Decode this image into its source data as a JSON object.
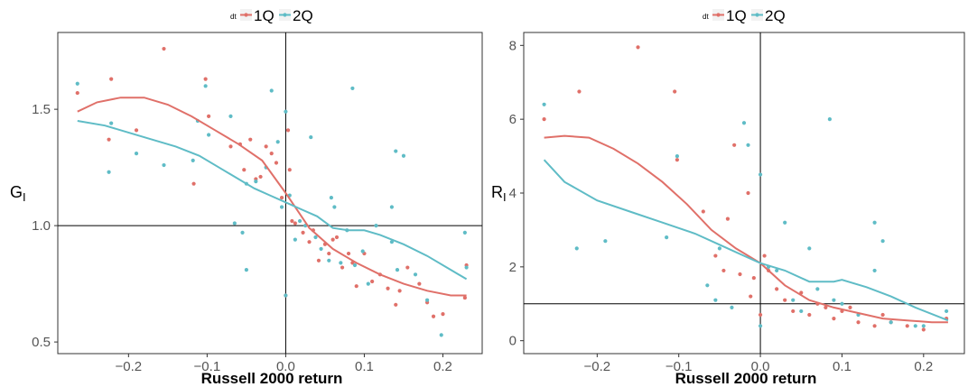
{
  "colors": {
    "series_1Q": "#E07069",
    "series_2Q": "#5FBCC6"
  },
  "chart_data": [
    {
      "type": "scatter",
      "panel": "left",
      "xlabel": "Russell 2000 return",
      "ylabel_main": "G",
      "ylabel_sub": "I",
      "legend_title": "dt",
      "legend_position": "top",
      "xlim": [
        -0.29,
        0.25
      ],
      "ylim": [
        0.45,
        1.83
      ],
      "xticks": [
        -0.2,
        -0.1,
        0.0,
        0.1,
        0.2
      ],
      "xtick_labels": [
        "−0.2",
        "−0.1",
        "0.0",
        "0.1",
        "0.2"
      ],
      "yticks": [
        0.5,
        1.0,
        1.5
      ],
      "ytick_labels": [
        "0.5",
        "1.0",
        "1.5"
      ],
      "ref_x": 0.0,
      "ref_y": 1.0,
      "grid": false,
      "series": [
        {
          "name": "1Q",
          "points": [
            [
              -0.265,
              1.57
            ],
            [
              -0.225,
              1.37
            ],
            [
              -0.222,
              1.63
            ],
            [
              -0.19,
              1.41
            ],
            [
              -0.155,
              1.76
            ],
            [
              -0.117,
              1.18
            ],
            [
              -0.102,
              1.63
            ],
            [
              -0.098,
              1.47
            ],
            [
              -0.07,
              1.34
            ],
            [
              -0.058,
              1.35
            ],
            [
              -0.053,
              1.24
            ],
            [
              -0.045,
              1.37
            ],
            [
              -0.038,
              1.2
            ],
            [
              -0.032,
              1.21
            ],
            [
              -0.025,
              1.34
            ],
            [
              -0.018,
              1.31
            ],
            [
              -0.012,
              1.27
            ],
            [
              -0.005,
              1.12
            ],
            [
              0.0,
              0.7
            ],
            [
              0.003,
              1.41
            ],
            [
              0.005,
              1.24
            ],
            [
              0.008,
              1.02
            ],
            [
              0.012,
              1.01
            ],
            [
              0.022,
              0.97
            ],
            [
              0.03,
              0.93
            ],
            [
              0.035,
              0.98
            ],
            [
              0.042,
              0.85
            ],
            [
              0.05,
              0.92
            ],
            [
              0.055,
              0.88
            ],
            [
              0.06,
              0.94
            ],
            [
              0.065,
              0.95
            ],
            [
              0.072,
              0.82
            ],
            [
              0.08,
              0.88
            ],
            [
              0.085,
              0.84
            ],
            [
              0.09,
              0.74
            ],
            [
              0.1,
              0.88
            ],
            [
              0.11,
              0.76
            ],
            [
              0.12,
              0.79
            ],
            [
              0.13,
              0.73
            ],
            [
              0.14,
              0.66
            ],
            [
              0.145,
              0.72
            ],
            [
              0.155,
              0.82
            ],
            [
              0.17,
              0.75
            ],
            [
              0.18,
              0.67
            ],
            [
              0.188,
              0.61
            ],
            [
              0.2,
              0.62
            ],
            [
              0.228,
              0.69
            ],
            [
              0.23,
              0.83
            ]
          ],
          "trend": [
            [
              -0.265,
              1.49
            ],
            [
              -0.24,
              1.53
            ],
            [
              -0.21,
              1.55
            ],
            [
              -0.18,
              1.55
            ],
            [
              -0.15,
              1.52
            ],
            [
              -0.12,
              1.47
            ],
            [
              -0.09,
              1.41
            ],
            [
              -0.06,
              1.35
            ],
            [
              -0.03,
              1.28
            ],
            [
              0.0,
              1.14
            ],
            [
              0.03,
              0.99
            ],
            [
              0.06,
              0.9
            ],
            [
              0.09,
              0.84
            ],
            [
              0.12,
              0.79
            ],
            [
              0.15,
              0.75
            ],
            [
              0.18,
              0.72
            ],
            [
              0.21,
              0.7
            ],
            [
              0.23,
              0.7
            ]
          ]
        },
        {
          "name": "2Q",
          "points": [
            [
              -0.265,
              1.61
            ],
            [
              -0.225,
              1.23
            ],
            [
              -0.222,
              1.44
            ],
            [
              -0.19,
              1.31
            ],
            [
              -0.155,
              1.26
            ],
            [
              -0.118,
              1.28
            ],
            [
              -0.112,
              1.45
            ],
            [
              -0.102,
              1.6
            ],
            [
              -0.098,
              1.39
            ],
            [
              -0.07,
              1.47
            ],
            [
              -0.065,
              1.01
            ],
            [
              -0.055,
              0.97
            ],
            [
              -0.05,
              1.18
            ],
            [
              -0.05,
              0.81
            ],
            [
              -0.038,
              1.19
            ],
            [
              -0.025,
              1.25
            ],
            [
              -0.018,
              1.58
            ],
            [
              -0.01,
              1.36
            ],
            [
              -0.005,
              1.08
            ],
            [
              0.0,
              0.7
            ],
            [
              0.0,
              1.49
            ],
            [
              0.005,
              1.13
            ],
            [
              0.012,
              0.94
            ],
            [
              0.018,
              1.02
            ],
            [
              0.025,
              1.0
            ],
            [
              0.032,
              1.38
            ],
            [
              0.038,
              0.95
            ],
            [
              0.045,
              0.9
            ],
            [
              0.055,
              0.85
            ],
            [
              0.058,
              1.12
            ],
            [
              0.062,
              1.08
            ],
            [
              0.07,
              0.84
            ],
            [
              0.078,
              0.98
            ],
            [
              0.085,
              1.59
            ],
            [
              0.088,
              0.83
            ],
            [
              0.098,
              0.89
            ],
            [
              0.105,
              0.75
            ],
            [
              0.115,
              1.0
            ],
            [
              0.135,
              0.93
            ],
            [
              0.135,
              1.08
            ],
            [
              0.14,
              1.32
            ],
            [
              0.142,
              0.81
            ],
            [
              0.15,
              1.3
            ],
            [
              0.165,
              0.79
            ],
            [
              0.18,
              0.68
            ],
            [
              0.198,
              0.53
            ],
            [
              0.228,
              0.97
            ],
            [
              0.23,
              0.82
            ]
          ],
          "trend": [
            [
              -0.265,
              1.45
            ],
            [
              -0.23,
              1.43
            ],
            [
              -0.2,
              1.4
            ],
            [
              -0.17,
              1.37
            ],
            [
              -0.14,
              1.34
            ],
            [
              -0.11,
              1.3
            ],
            [
              -0.08,
              1.24
            ],
            [
              -0.06,
              1.2
            ],
            [
              -0.04,
              1.16
            ],
            [
              -0.02,
              1.13
            ],
            [
              0.0,
              1.1
            ],
            [
              0.02,
              1.07
            ],
            [
              0.04,
              1.04
            ],
            [
              0.06,
              0.99
            ],
            [
              0.08,
              0.98
            ],
            [
              0.1,
              0.98
            ],
            [
              0.12,
              0.96
            ],
            [
              0.15,
              0.92
            ],
            [
              0.18,
              0.87
            ],
            [
              0.21,
              0.81
            ],
            [
              0.23,
              0.77
            ]
          ]
        }
      ]
    },
    {
      "type": "scatter",
      "panel": "right",
      "xlabel": "Russell 2000 return",
      "ylabel_main": "R",
      "ylabel_sub": "I",
      "legend_title": "dt",
      "legend_position": "top",
      "xlim": [
        -0.29,
        0.25
      ],
      "ylim": [
        -0.35,
        8.35
      ],
      "xticks": [
        -0.2,
        -0.1,
        0.0,
        0.1,
        0.2
      ],
      "xtick_labels": [
        "−0.2",
        "−0.1",
        "0.0",
        "0.1",
        "0.2"
      ],
      "yticks": [
        0,
        2,
        4,
        6,
        8
      ],
      "ytick_labels": [
        "0",
        "2",
        "4",
        "6",
        "8"
      ],
      "ref_x": 0.0,
      "ref_y": 1.0,
      "grid": false,
      "series": [
        {
          "name": "1Q",
          "points": [
            [
              -0.265,
              6.0
            ],
            [
              -0.222,
              6.75
            ],
            [
              -0.15,
              7.95
            ],
            [
              -0.105,
              6.75
            ],
            [
              -0.102,
              4.9
            ],
            [
              -0.07,
              3.5
            ],
            [
              -0.055,
              2.3
            ],
            [
              -0.045,
              1.9
            ],
            [
              -0.04,
              3.3
            ],
            [
              -0.032,
              5.3
            ],
            [
              -0.025,
              1.8
            ],
            [
              -0.015,
              4.0
            ],
            [
              -0.012,
              1.2
            ],
            [
              -0.008,
              1.7
            ],
            [
              0.0,
              0.7
            ],
            [
              0.005,
              2.3
            ],
            [
              0.01,
              1.9
            ],
            [
              0.02,
              1.4
            ],
            [
              0.03,
              1.1
            ],
            [
              0.04,
              0.8
            ],
            [
              0.05,
              1.3
            ],
            [
              0.06,
              0.7
            ],
            [
              0.07,
              1.0
            ],
            [
              0.08,
              0.9
            ],
            [
              0.09,
              0.6
            ],
            [
              0.1,
              0.8
            ],
            [
              0.11,
              0.9
            ],
            [
              0.12,
              0.5
            ],
            [
              0.14,
              0.4
            ],
            [
              0.15,
              0.7
            ],
            [
              0.16,
              0.5
            ],
            [
              0.18,
              0.4
            ],
            [
              0.2,
              0.3
            ],
            [
              0.228,
              0.6
            ]
          ],
          "trend": [
            [
              -0.265,
              5.5
            ],
            [
              -0.24,
              5.55
            ],
            [
              -0.21,
              5.5
            ],
            [
              -0.18,
              5.2
            ],
            [
              -0.15,
              4.8
            ],
            [
              -0.12,
              4.3
            ],
            [
              -0.09,
              3.7
            ],
            [
              -0.06,
              3.0
            ],
            [
              -0.03,
              2.5
            ],
            [
              0.0,
              2.1
            ],
            [
              0.03,
              1.5
            ],
            [
              0.06,
              1.1
            ],
            [
              0.09,
              0.9
            ],
            [
              0.12,
              0.75
            ],
            [
              0.15,
              0.6
            ],
            [
              0.18,
              0.55
            ],
            [
              0.21,
              0.5
            ],
            [
              0.23,
              0.5
            ]
          ]
        },
        {
          "name": "2Q",
          "points": [
            [
              -0.265,
              6.4
            ],
            [
              -0.225,
              2.5
            ],
            [
              -0.19,
              2.7
            ],
            [
              -0.115,
              2.8
            ],
            [
              -0.102,
              5.0
            ],
            [
              -0.065,
              1.5
            ],
            [
              -0.055,
              1.1
            ],
            [
              -0.05,
              2.5
            ],
            [
              -0.035,
              0.9
            ],
            [
              -0.02,
              5.9
            ],
            [
              -0.015,
              5.3
            ],
            [
              0.0,
              0.4
            ],
            [
              0.0,
              4.5
            ],
            [
              0.01,
              2.0
            ],
            [
              0.02,
              1.9
            ],
            [
              0.03,
              3.2
            ],
            [
              0.04,
              1.1
            ],
            [
              0.05,
              0.8
            ],
            [
              0.06,
              2.5
            ],
            [
              0.07,
              1.4
            ],
            [
              0.085,
              6.0
            ],
            [
              0.09,
              1.1
            ],
            [
              0.1,
              1.0
            ],
            [
              0.12,
              0.7
            ],
            [
              0.14,
              3.2
            ],
            [
              0.14,
              1.9
            ],
            [
              0.15,
              2.7
            ],
            [
              0.16,
              0.5
            ],
            [
              0.19,
              0.4
            ],
            [
              0.2,
              0.4
            ],
            [
              0.228,
              0.8
            ]
          ],
          "trend": [
            [
              -0.265,
              4.9
            ],
            [
              -0.24,
              4.3
            ],
            [
              -0.2,
              3.8
            ],
            [
              -0.16,
              3.5
            ],
            [
              -0.12,
              3.2
            ],
            [
              -0.08,
              2.9
            ],
            [
              -0.05,
              2.6
            ],
            [
              -0.02,
              2.3
            ],
            [
              0.0,
              2.1
            ],
            [
              0.03,
              1.9
            ],
            [
              0.06,
              1.6
            ],
            [
              0.09,
              1.6
            ],
            [
              0.1,
              1.65
            ],
            [
              0.13,
              1.45
            ],
            [
              0.16,
              1.2
            ],
            [
              0.19,
              0.9
            ],
            [
              0.23,
              0.55
            ]
          ]
        }
      ]
    }
  ]
}
